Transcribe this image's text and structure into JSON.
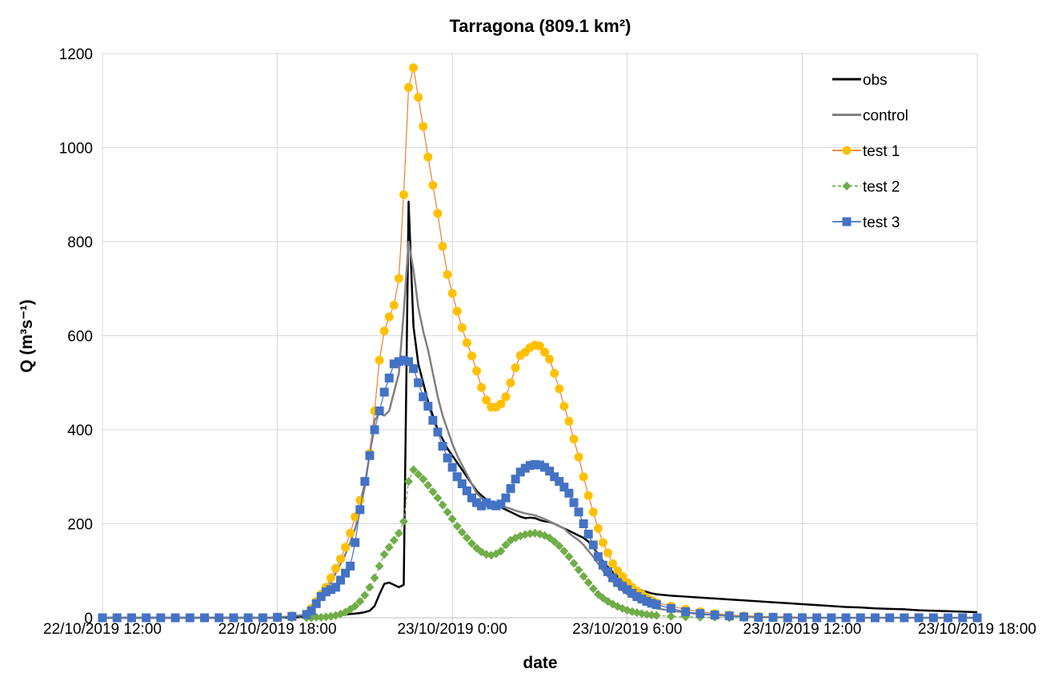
{
  "chart_data": {
    "type": "line",
    "title": "Tarragona (809.1 km²)",
    "x_label": "date",
    "y_label": "Q (m³s⁻¹)",
    "x": [
      "2019-10-22T12:00",
      "2019-10-22T12:30",
      "2019-10-22T13:00",
      "2019-10-22T13:30",
      "2019-10-22T14:00",
      "2019-10-22T14:30",
      "2019-10-22T15:00",
      "2019-10-22T15:30",
      "2019-10-22T16:00",
      "2019-10-22T16:30",
      "2019-10-22T17:00",
      "2019-10-22T17:30",
      "2019-10-22T18:00",
      "2019-10-22T18:30",
      "2019-10-22T19:00",
      "2019-10-22T19:10",
      "2019-10-22T19:20",
      "2019-10-22T19:30",
      "2019-10-22T19:40",
      "2019-10-22T19:50",
      "2019-10-22T20:00",
      "2019-10-22T20:10",
      "2019-10-22T20:20",
      "2019-10-22T20:30",
      "2019-10-22T20:40",
      "2019-10-22T20:50",
      "2019-10-22T21:00",
      "2019-10-22T21:10",
      "2019-10-22T21:20",
      "2019-10-22T21:30",
      "2019-10-22T21:40",
      "2019-10-22T21:50",
      "2019-10-22T22:00",
      "2019-10-22T22:10",
      "2019-10-22T22:20",
      "2019-10-22T22:30",
      "2019-10-22T22:40",
      "2019-10-22T22:50",
      "2019-10-22T23:00",
      "2019-10-22T23:10",
      "2019-10-22T23:20",
      "2019-10-22T23:30",
      "2019-10-22T23:40",
      "2019-10-22T23:50",
      "2019-10-23T00:00",
      "2019-10-23T00:10",
      "2019-10-23T00:20",
      "2019-10-23T00:30",
      "2019-10-23T00:40",
      "2019-10-23T00:50",
      "2019-10-23T01:00",
      "2019-10-23T01:10",
      "2019-10-23T01:20",
      "2019-10-23T01:30",
      "2019-10-23T01:40",
      "2019-10-23T01:50",
      "2019-10-23T02:00",
      "2019-10-23T02:10",
      "2019-10-23T02:20",
      "2019-10-23T02:30",
      "2019-10-23T02:40",
      "2019-10-23T02:50",
      "2019-10-23T03:00",
      "2019-10-23T03:10",
      "2019-10-23T03:20",
      "2019-10-23T03:30",
      "2019-10-23T03:40",
      "2019-10-23T03:50",
      "2019-10-23T04:00",
      "2019-10-23T04:10",
      "2019-10-23T04:20",
      "2019-10-23T04:30",
      "2019-10-23T04:40",
      "2019-10-23T04:50",
      "2019-10-23T05:00",
      "2019-10-23T05:10",
      "2019-10-23T05:20",
      "2019-10-23T05:30",
      "2019-10-23T05:40",
      "2019-10-23T05:50",
      "2019-10-23T06:00",
      "2019-10-23T06:10",
      "2019-10-23T06:20",
      "2019-10-23T06:30",
      "2019-10-23T06:40",
      "2019-10-23T06:50",
      "2019-10-23T07:00",
      "2019-10-23T07:30",
      "2019-10-23T08:00",
      "2019-10-23T08:30",
      "2019-10-23T09:00",
      "2019-10-23T09:30",
      "2019-10-23T10:00",
      "2019-10-23T10:30",
      "2019-10-23T11:00",
      "2019-10-23T11:30",
      "2019-10-23T12:00",
      "2019-10-23T12:30",
      "2019-10-23T13:00",
      "2019-10-23T13:30",
      "2019-10-23T14:00",
      "2019-10-23T14:30",
      "2019-10-23T15:00",
      "2019-10-23T15:30",
      "2019-10-23T16:00",
      "2019-10-23T16:30",
      "2019-10-23T17:00",
      "2019-10-23T17:30",
      "2019-10-23T18:00"
    ],
    "series": [
      {
        "name": "obs",
        "color": "#000000",
        "width": 2.5,
        "marker": "none",
        "values": [
          0,
          0,
          0,
          0,
          0,
          0,
          0,
          0,
          0,
          0,
          0,
          0,
          0,
          1,
          1,
          2,
          2,
          3,
          3,
          4,
          5,
          6,
          7,
          8,
          9,
          10,
          12,
          15,
          25,
          50,
          72,
          75,
          70,
          65,
          70,
          885,
          620,
          540,
          500,
          460,
          430,
          400,
          380,
          360,
          345,
          330,
          315,
          300,
          285,
          270,
          260,
          252,
          245,
          240,
          235,
          230,
          225,
          220,
          215,
          212,
          213,
          212,
          208,
          205,
          204,
          200,
          195,
          190,
          185,
          180,
          175,
          170,
          162,
          150,
          135,
          120,
          108,
          97,
          88,
          80,
          73,
          67,
          62,
          58,
          55,
          52,
          50,
          47,
          45,
          43,
          41,
          39,
          37,
          35,
          33,
          31,
          29,
          27,
          25,
          23,
          22,
          20,
          19,
          18,
          16,
          15,
          14,
          13,
          12
        ]
      },
      {
        "name": "control",
        "color": "#808080",
        "width": 2.5,
        "marker": "none",
        "values": [
          0,
          0,
          0,
          0,
          0,
          0,
          0,
          0,
          0,
          0,
          0,
          0,
          1,
          3,
          7,
          15,
          30,
          45,
          60,
          75,
          95,
          115,
          135,
          160,
          190,
          230,
          280,
          350,
          420,
          435,
          430,
          440,
          480,
          520,
          650,
          800,
          740,
          660,
          610,
          570,
          520,
          470,
          430,
          400,
          370,
          345,
          325,
          305,
          285,
          265,
          255,
          250,
          245,
          240,
          238,
          235,
          232,
          228,
          225,
          222,
          220,
          218,
          214,
          210,
          205,
          200,
          195,
          190,
          180,
          172,
          165,
          155,
          142,
          130,
          115,
          100,
          88,
          77,
          67,
          58,
          50,
          44,
          38,
          33,
          28,
          24,
          20,
          15,
          11,
          8,
          6,
          4,
          3,
          2,
          1,
          1,
          0,
          0,
          0,
          0,
          0,
          0,
          0,
          0,
          0,
          0,
          0,
          0,
          0
        ]
      },
      {
        "name": "test 1",
        "color": "#ed7d31",
        "marker_color": "#ffc000",
        "width": 1.2,
        "marker": "circle",
        "values": [
          0,
          0,
          0,
          0,
          0,
          0,
          0,
          0,
          0,
          0,
          0,
          0,
          2,
          4,
          8,
          20,
          35,
          50,
          65,
          85,
          105,
          125,
          150,
          180,
          215,
          250,
          290,
          350,
          440,
          548,
          610,
          640,
          665,
          722,
          900,
          1128,
          1170,
          1107,
          1045,
          980,
          920,
          860,
          790,
          730,
          690,
          652,
          617,
          585,
          557,
          525,
          490,
          463,
          448,
          448,
          455,
          470,
          500,
          532,
          558,
          565,
          575,
          580,
          578,
          565,
          550,
          520,
          487,
          450,
          418,
          380,
          342,
          300,
          260,
          225,
          190,
          160,
          138,
          115,
          100,
          88,
          75,
          65,
          57,
          50,
          43,
          37,
          32,
          25,
          18,
          13,
          9,
          6,
          4,
          3,
          2,
          1,
          1,
          0,
          0,
          0,
          0,
          0,
          0,
          0,
          0,
          0,
          0,
          0,
          0
        ]
      },
      {
        "name": "test 2",
        "color": "#70ad47",
        "marker_color": "#70ad47",
        "width": 1.2,
        "dash": "4 3",
        "marker": "diamond",
        "values": [
          0,
          0,
          0,
          0,
          0,
          0,
          0,
          0,
          0,
          0,
          0,
          0,
          0,
          0,
          0,
          0,
          1,
          1,
          2,
          3,
          5,
          8,
          12,
          18,
          25,
          35,
          48,
          65,
          85,
          110,
          135,
          150,
          165,
          180,
          205,
          290,
          315,
          305,
          295,
          282,
          268,
          255,
          240,
          225,
          210,
          195,
          182,
          170,
          158,
          148,
          140,
          135,
          133,
          136,
          142,
          155,
          165,
          170,
          174,
          177,
          179,
          180,
          178,
          175,
          170,
          162,
          153,
          142,
          130,
          116,
          102,
          88,
          75,
          62,
          50,
          42,
          35,
          29,
          24,
          20,
          16,
          13,
          11,
          9,
          7,
          6,
          5,
          3,
          2,
          1,
          1,
          0,
          0,
          0,
          0,
          0,
          0,
          0,
          0,
          0,
          0,
          0,
          0,
          0,
          0,
          0,
          0,
          0,
          0
        ]
      },
      {
        "name": "test 3",
        "color": "#4472c4",
        "marker_color": "#4472c4",
        "width": 1.2,
        "marker": "square",
        "values": [
          0,
          0,
          0,
          0,
          0,
          0,
          0,
          0,
          0,
          0,
          0,
          0,
          1,
          3,
          7,
          15,
          30,
          45,
          55,
          60,
          65,
          80,
          95,
          110,
          160,
          230,
          290,
          345,
          400,
          440,
          480,
          510,
          540,
          545,
          548,
          545,
          530,
          500,
          470,
          450,
          420,
          395,
          365,
          340,
          320,
          300,
          285,
          270,
          255,
          245,
          238,
          245,
          240,
          238,
          242,
          255,
          275,
          295,
          310,
          318,
          324,
          326,
          325,
          320,
          312,
          300,
          290,
          278,
          265,
          245,
          225,
          200,
          178,
          155,
          130,
          112,
          98,
          85,
          75,
          67,
          60,
          52,
          45,
          40,
          35,
          31,
          28,
          20,
          13,
          9,
          6,
          4,
          2,
          1,
          1,
          0,
          0,
          0,
          0,
          0,
          0,
          0,
          0,
          0,
          0,
          0,
          0,
          0,
          0
        ]
      }
    ],
    "xlim": [
      "2019-10-22T12:00",
      "2019-10-23T18:00"
    ],
    "xticks": [
      {
        "value": "2019-10-22T12:00",
        "label": "22/10/2019 12:00"
      },
      {
        "value": "2019-10-22T18:00",
        "label": "22/10/2019 18:00"
      },
      {
        "value": "2019-10-23T00:00",
        "label": "23/10/2019 0:00"
      },
      {
        "value": "2019-10-23T06:00",
        "label": "23/10/2019 6:00"
      },
      {
        "value": "2019-10-23T12:00",
        "label": "23/10/2019 12:00"
      },
      {
        "value": "2019-10-23T18:00",
        "label": "23/10/2019 18:00"
      }
    ],
    "ylim": [
      0,
      1200
    ],
    "yticks": [
      0,
      200,
      400,
      600,
      800,
      1000,
      1200
    ],
    "grid": true,
    "legend": "upper right"
  }
}
